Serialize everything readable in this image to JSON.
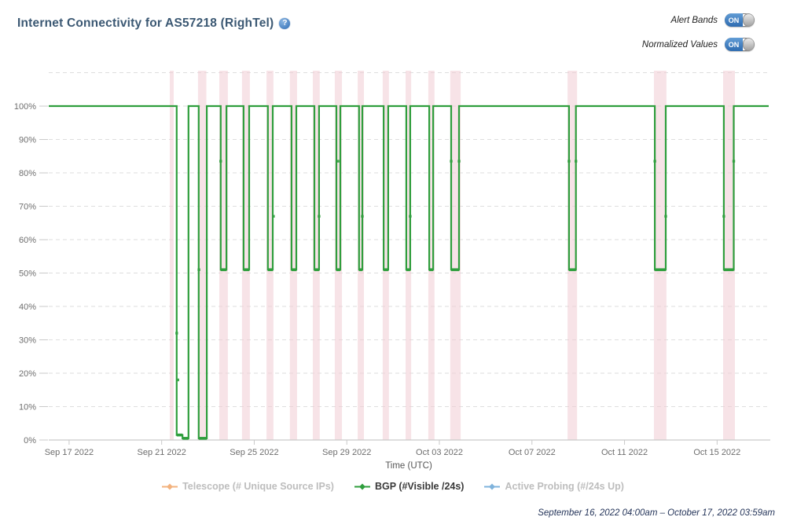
{
  "header": {
    "title": "Internet Connectivity for AS57218 (RighTel)",
    "help_icon": "?"
  },
  "controls": {
    "alert_bands_label": "Alert Bands",
    "normalized_values_label": "Normalized Values",
    "on_label": "ON"
  },
  "legend": {
    "items": [
      {
        "label": "Telescope (# Unique Source IPs)",
        "color": "#f3b27e",
        "active": false
      },
      {
        "label": "BGP (#Visible /24s)",
        "color": "#2f9e3d",
        "active": true
      },
      {
        "label": "Active Probing (#/24s Up)",
        "color": "#7fb3dc",
        "active": false
      }
    ]
  },
  "footer": {
    "date_range": "September 16, 2022 04:00am – October 17, 2022 03:59am"
  },
  "chart_data": {
    "type": "line",
    "title": "Internet Connectivity for AS57218 (RighTel)",
    "xlabel": "Time (UTC)",
    "ylabel": "",
    "legend_position": "bottom",
    "grid": "horizontal-dashed",
    "x_axis": {
      "tick_labels": [
        "Sep 17 2022",
        "Sep 21 2022",
        "Sep 25 2022",
        "Sep 29 2022",
        "Oct 03 2022",
        "Oct 07 2022",
        "Oct 11 2022",
        "Oct 15 2022"
      ],
      "tick_days": [
        0,
        4,
        8,
        12,
        16,
        20,
        24,
        28
      ],
      "day0_label": "Sep 17 2022",
      "lim_days": [
        -0.88,
        30.23
      ]
    },
    "y_axis": {
      "tick_labels": [
        "0%",
        "10%",
        "20%",
        "30%",
        "40%",
        "50%",
        "60%",
        "70%",
        "80%",
        "90%",
        "100%"
      ],
      "tick_values": [
        0,
        10,
        20,
        30,
        40,
        50,
        60,
        70,
        80,
        90,
        100
      ],
      "lim": [
        0,
        110.6
      ],
      "grid_step": 10,
      "grid_max": 110
    },
    "alert_bands_days": [
      [
        4.35,
        4.52
      ],
      [
        5.57,
        5.93
      ],
      [
        6.49,
        6.86
      ],
      [
        7.47,
        7.81
      ],
      [
        8.53,
        8.83
      ],
      [
        9.54,
        9.85
      ],
      [
        10.53,
        10.83
      ],
      [
        11.48,
        11.79
      ],
      [
        12.47,
        12.74
      ],
      [
        13.55,
        13.82
      ],
      [
        14.54,
        14.78
      ],
      [
        15.52,
        15.79
      ],
      [
        16.47,
        16.92
      ],
      [
        21.54,
        21.95
      ],
      [
        25.27,
        25.81
      ],
      [
        28.26,
        28.77
      ]
    ],
    "series": [
      {
        "name": "Telescope (# Unique Source IPs)",
        "color": "#f3b27e",
        "visible": false
      },
      {
        "name": "BGP (#Visible /24s)",
        "color": "#2f9e3d",
        "visible": true,
        "segments_days_value_pct": [
          [
            -0.88,
            4.65,
            100
          ],
          [
            4.65,
            4.9,
            1.5
          ],
          [
            4.9,
            5.16,
            0.5
          ],
          [
            5.16,
            5.6,
            100
          ],
          [
            5.6,
            5.95,
            0.5
          ],
          [
            5.95,
            6.55,
            100
          ],
          [
            6.55,
            6.8,
            51
          ],
          [
            6.8,
            7.54,
            100
          ],
          [
            7.54,
            7.78,
            51
          ],
          [
            7.78,
            8.59,
            100
          ],
          [
            8.59,
            8.8,
            51
          ],
          [
            8.8,
            9.61,
            100
          ],
          [
            9.61,
            9.82,
            51
          ],
          [
            9.82,
            10.6,
            100
          ],
          [
            10.6,
            10.8,
            51
          ],
          [
            10.8,
            11.55,
            100
          ],
          [
            11.55,
            11.72,
            51
          ],
          [
            11.72,
            12.53,
            100
          ],
          [
            12.53,
            12.67,
            51
          ],
          [
            12.67,
            13.59,
            100
          ],
          [
            13.59,
            13.79,
            51
          ],
          [
            13.79,
            14.57,
            100
          ],
          [
            14.57,
            14.74,
            51
          ],
          [
            14.74,
            15.56,
            100
          ],
          [
            15.56,
            15.73,
            51
          ],
          [
            15.73,
            16.51,
            100
          ],
          [
            16.51,
            16.85,
            51
          ],
          [
            16.85,
            21.6,
            100
          ],
          [
            21.6,
            21.9,
            51
          ],
          [
            21.9,
            25.31,
            100
          ],
          [
            25.31,
            25.78,
            51
          ],
          [
            25.78,
            28.29,
            100
          ],
          [
            28.29,
            28.72,
            51
          ],
          [
            28.72,
            30.23,
            100
          ]
        ]
      },
      {
        "name": "Active Probing (#/24s Up)",
        "color": "#7fb3dc",
        "visible": false
      }
    ],
    "transition_markers_day_pct": [
      [
        4.65,
        32
      ],
      [
        4.7,
        18
      ],
      [
        5.61,
        51
      ],
      [
        6.55,
        83.5
      ],
      [
        8.83,
        67
      ],
      [
        10.8,
        67
      ],
      [
        11.62,
        83.5
      ],
      [
        12.67,
        67
      ],
      [
        14.74,
        67
      ],
      [
        16.51,
        83.5
      ],
      [
        16.85,
        83.5
      ],
      [
        21.6,
        83.5
      ],
      [
        21.9,
        83.5
      ],
      [
        25.31,
        83.5
      ],
      [
        25.78,
        67
      ],
      [
        28.29,
        67
      ],
      [
        28.72,
        83.5
      ]
    ],
    "colors": {
      "band": "#f0ccd3",
      "line": "#2f9e3d",
      "grid": "#dedede",
      "axis": "#c9c9c9",
      "tick_text": "#6e6e6e",
      "axis_title": "#555555"
    },
    "time_range_label": "September 16, 2022 04:00am – October 17, 2022 03:59am"
  }
}
